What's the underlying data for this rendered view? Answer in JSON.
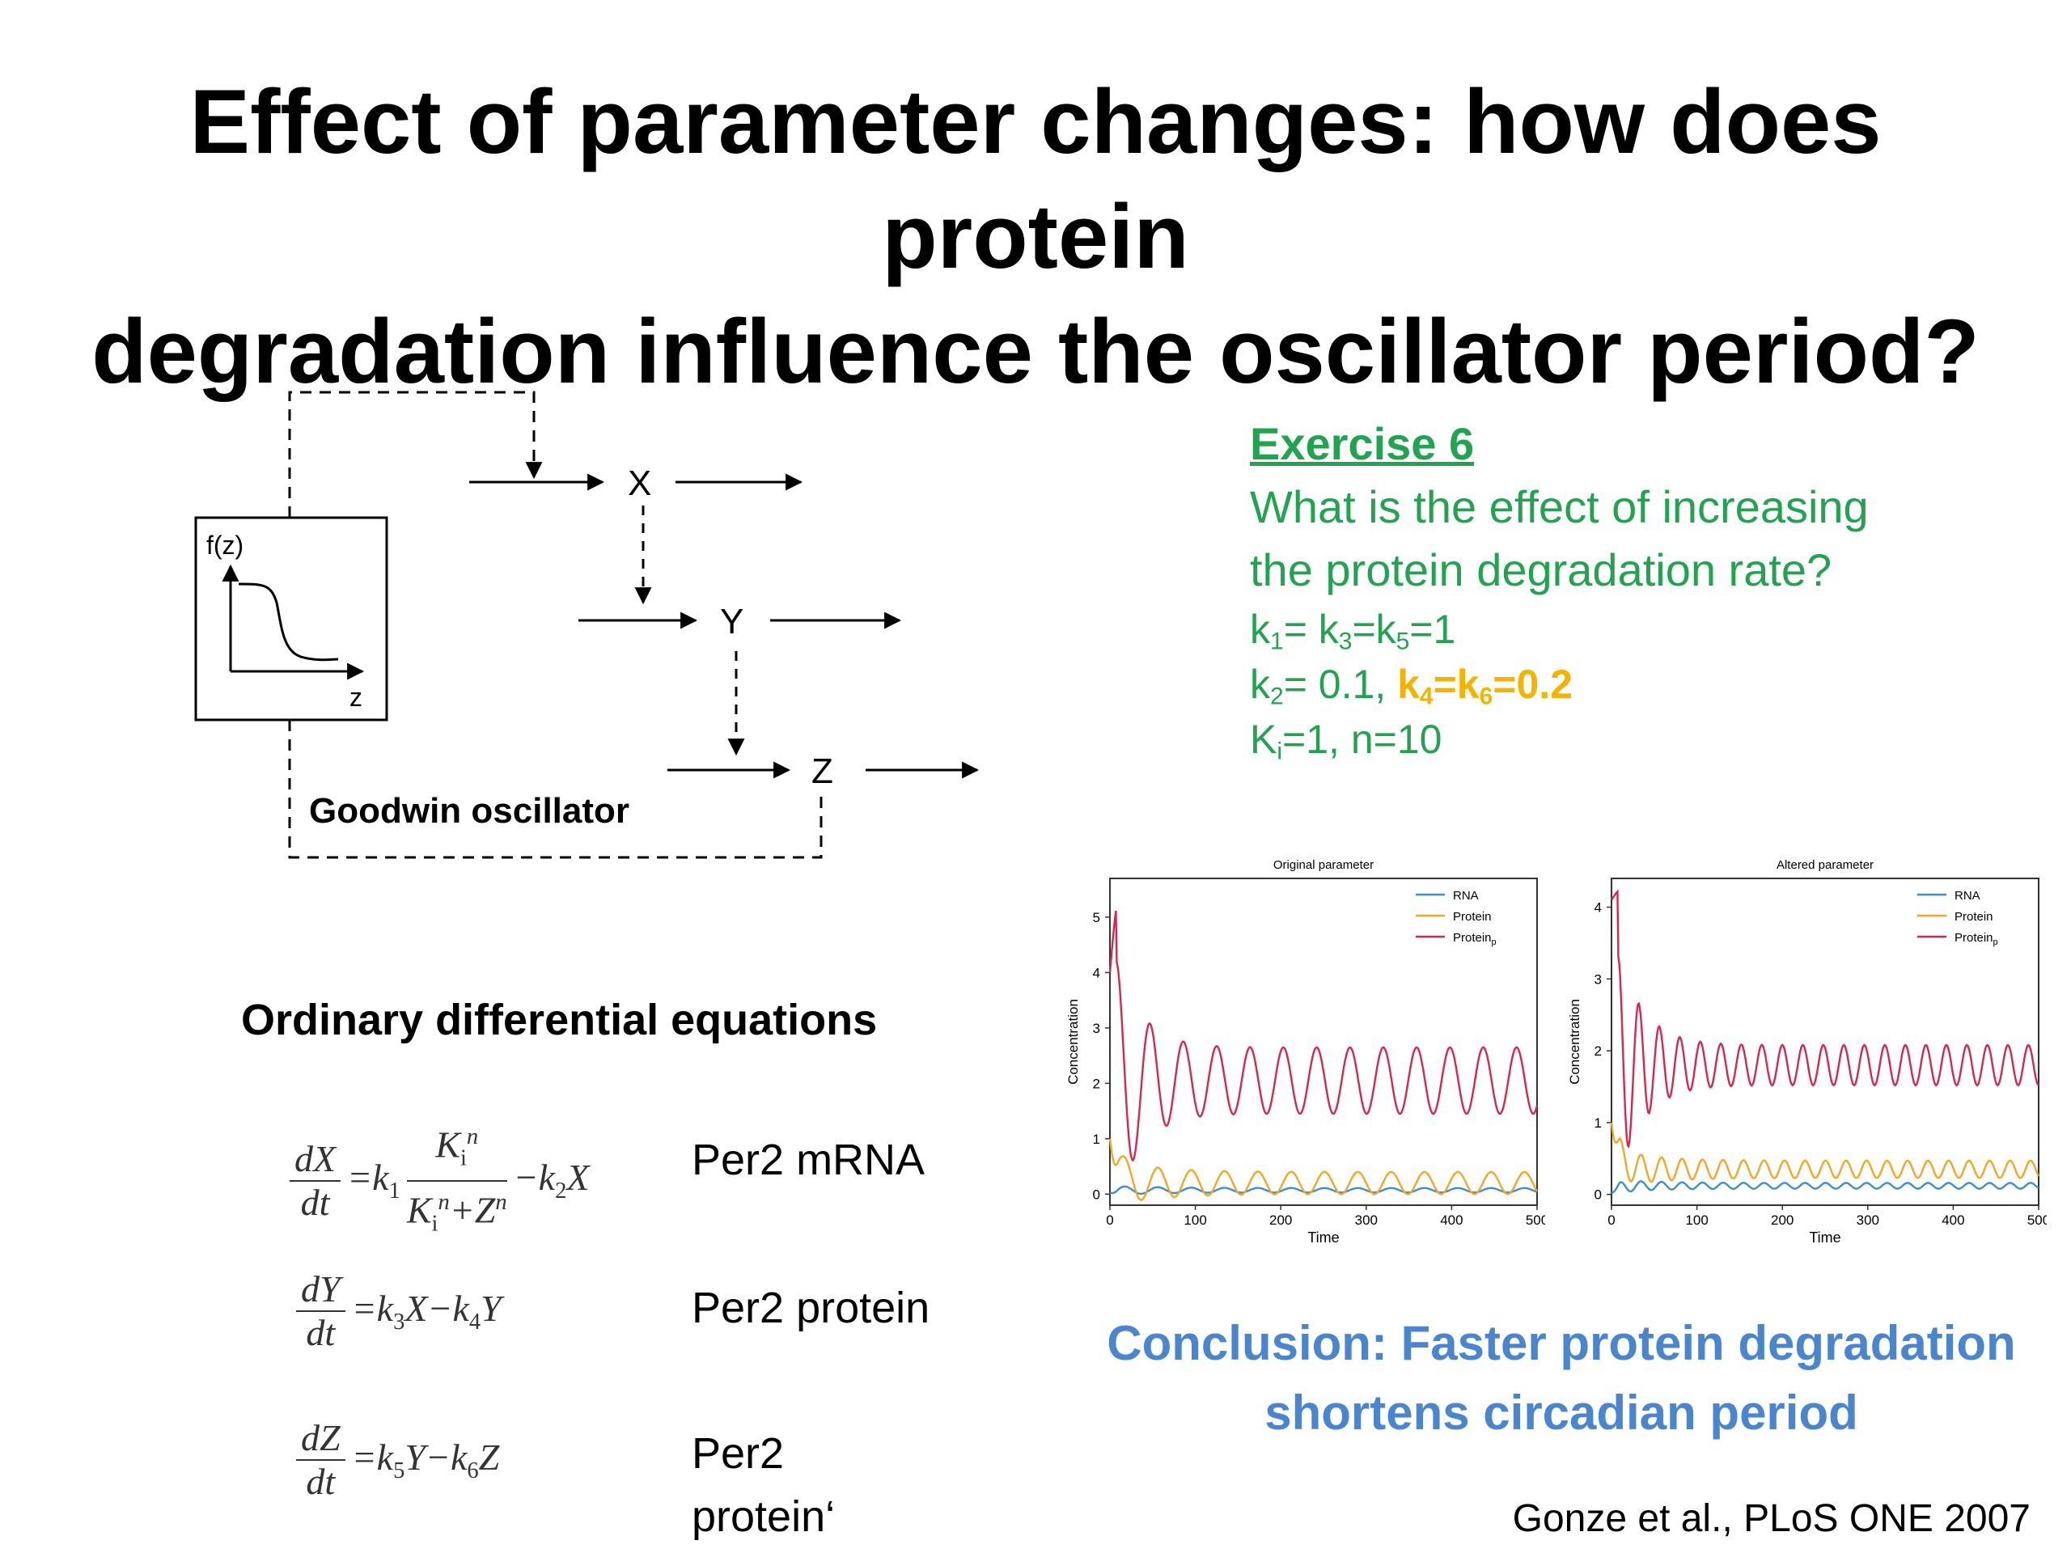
{
  "slide": {
    "title_line1": "Effect of parameter changes: how does protein",
    "title_line2": "degradation influence the oscillator period?"
  },
  "diagram": {
    "f_label": "f(z)",
    "z_axis": "z",
    "node_x": "X",
    "node_y": "Y",
    "node_z": "Z",
    "caption": "Goodwin oscillator"
  },
  "exercise": {
    "title": "Exercise 6",
    "line1": "What is the effect of increasing",
    "line2": "the protein degradation rate?",
    "colors": {
      "text": "#21a34f",
      "highlight": "#f5b300"
    }
  },
  "equations": {
    "heading": "Ordinary differential equations",
    "eq1_label": "Per2 mRNA",
    "eq2_label": "Per2 protein",
    "eq3_label_line1": "Per2",
    "eq3_label_line2": "protein‘"
  },
  "conclusion": {
    "line1": "Conclusion: Faster protein degradation",
    "line2": "shortens circadian period",
    "color": "#4a86cf"
  },
  "citation": "Gonze et al., PLoS ONE 2007",
  "chart_data": [
    {
      "type": "line",
      "title": "Original parameter",
      "xlabel": "Time",
      "ylabel": "Concentration",
      "xlim": [
        0,
        500
      ],
      "ylim": [
        -0.2,
        5.7
      ],
      "xticks": [
        0,
        100,
        200,
        300,
        400,
        500
      ],
      "yticks": [
        0,
        1,
        2,
        3,
        4,
        5
      ],
      "legend_position": "top-right",
      "series": [
        {
          "name": "RNA",
          "color": "#3b8fd4",
          "start": 0.02,
          "mean": 0.07,
          "amp": 0.04,
          "period": 39,
          "decay": 0.006
        },
        {
          "name": "Protein",
          "color": "#f5a623",
          "start": 1.0,
          "mean": 0.2,
          "amp": 0.2,
          "period": 39,
          "decay": 0.006
        },
        {
          "name": "Protein",
          "name_sub": "p",
          "color": "#d6284e",
          "start": 4.0,
          "peak": 5.45,
          "mean": 2.05,
          "amp": 0.6,
          "period": 39,
          "decay": 0.007
        }
      ]
    },
    {
      "type": "line",
      "title": "Altered parameter",
      "xlabel": "Time",
      "ylabel": "Concentration",
      "xlim": [
        0,
        500
      ],
      "ylim": [
        -0.15,
        4.4
      ],
      "xticks": [
        0,
        100,
        200,
        300,
        400,
        500
      ],
      "yticks": [
        0,
        1,
        2,
        3,
        4
      ],
      "legend_position": "top-right",
      "series": [
        {
          "name": "RNA",
          "color": "#3b8fd4",
          "start": 0.02,
          "mean": 0.12,
          "amp": 0.04,
          "period": 24,
          "decay": 0.01
        },
        {
          "name": "Protein",
          "color": "#f5a623",
          "start": 1.0,
          "mean": 0.35,
          "amp": 0.12,
          "period": 24,
          "decay": 0.01
        },
        {
          "name": "Protein",
          "name_sub": "p",
          "color": "#d6284e",
          "start": 4.1,
          "peak": 4.25,
          "mean": 1.8,
          "amp": 0.28,
          "period": 24,
          "decay": 0.01
        }
      ]
    }
  ]
}
